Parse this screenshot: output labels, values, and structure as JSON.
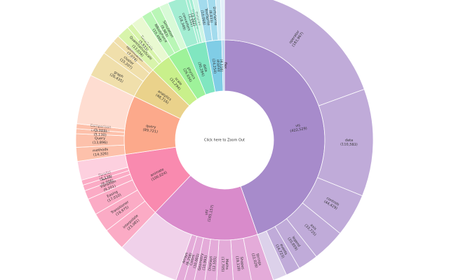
{
  "chart_data": {
    "type": "sunburst",
    "center_label": "Click here to Zoom Out",
    "nodes": [
      {
        "name": "vis",
        "value": 422529,
        "value_label": "(422,529)",
        "color": "#a78bcb",
        "children": [
          {
            "name": "operator",
            "value": 183967,
            "value_label": "(183,967)"
          },
          {
            "name": "data",
            "value": 110583,
            "value_label": "(110,583)"
          },
          {
            "name": "controls",
            "value": 44429,
            "value_label": "(44,429)"
          },
          {
            "name": "axis",
            "value": 33725,
            "value_label": "(33,725)"
          },
          {
            "name": "legend",
            "value": 20859,
            "value_label": "(20,859)"
          },
          {
            "name": "events",
            "value": 14723,
            "value_label": "(14,723)"
          }
        ]
      },
      {
        "name": "util",
        "value": 165157,
        "value_label": "(165,157)",
        "color": "#d98bcb",
        "children": [
          {
            "name": "Strings",
            "value": 22026,
            "value_label": "(22,026)"
          },
          {
            "name": "Shapes",
            "value": 19118,
            "value_label": "(19,118)"
          },
          {
            "name": "Maths",
            "value": 17705,
            "value_label": "(17,705)"
          },
          {
            "name": "Displays",
            "value": 12555,
            "value_label": "(12,555)"
          },
          {
            "name": "Geometry",
            "value": 10993,
            "value_label": "(10,993)"
          },
          {
            "name": "Colors",
            "value": 10001,
            "value_label": "(10,001)"
          },
          {
            "name": "Arrays",
            "value": 8258,
            "value_label": "(8,258)"
          }
        ]
      },
      {
        "name": "animate",
        "value": 100024,
        "value_label": "(100,024)",
        "color": "#f98aaf",
        "children": [
          {
            "name": "interpolate",
            "value": 23081,
            "value_label": "(23,081)"
          },
          {
            "name": "Transitioner",
            "value": 19975,
            "value_label": "(19,975)"
          },
          {
            "name": "Easing",
            "value": 17010,
            "value_label": "(17,010)"
          },
          {
            "name": "Transition",
            "value": 9201,
            "value_label": "(9,201)"
          },
          {
            "name": "Tween",
            "value": 6006,
            "value_label": "(6,006)"
          },
          {
            "name": "Parallel",
            "value": 5176,
            "value_label": "(5,176)"
          }
        ]
      },
      {
        "name": "query",
        "value": 89721,
        "value_label": "(89,721)",
        "color": "#fca98b",
        "children": [
          {
            "name": "methods",
            "value": 14326,
            "value_label": "(14,326)"
          },
          {
            "name": "Query",
            "value": 13896,
            "value_label": "(13,896)"
          },
          {
            "name": "Expression",
            "value": 5130,
            "value_label": "(5,130)"
          },
          {
            "name": "Comparison",
            "value": 5103,
            "value_label": "(5,103)"
          }
        ]
      },
      {
        "name": "analytics",
        "value": 48716,
        "value_label": "(48,716)",
        "color": "#ead28b",
        "children": [
          {
            "name": "graph",
            "value": 26435,
            "value_label": "(26,435)"
          },
          {
            "name": "cluster",
            "value": 15207,
            "value_label": "(15,207)"
          },
          {
            "name": "optimization",
            "value": 7074,
            "value_label": "(7,074)"
          }
        ]
      },
      {
        "name": "scale",
        "value": 31294,
        "value_label": "(31,294)",
        "color": "#c9f08b",
        "children": [
          {
            "name": "QuantitativeScale",
            "value": 13034,
            "value_label": "(13,034)"
          },
          {
            "name": "TimeScale",
            "value": 5833,
            "value_label": "(5,833)"
          }
        ]
      },
      {
        "name": "physics",
        "value": 29934,
        "value_label": "(29,934)",
        "color": "#9ef29a",
        "children": [
          {
            "name": "NBodyForce",
            "value": 10498,
            "value_label": "(10,498)"
          },
          {
            "name": "Simulation",
            "value": 9983,
            "value_label": "(9,983)"
          }
        ]
      },
      {
        "name": "data",
        "value": 30284,
        "value_label": "(30,284)",
        "color": "#80e6c0",
        "children": [
          {
            "name": "converters",
            "value": 18349,
            "value_label": "(18,349)"
          },
          {
            "name": "DataSource",
            "value": 3331,
            "value_label": "(3,331)"
          },
          {
            "name": "DataUtil",
            "value": 3322,
            "value_label": "(3,322)"
          }
        ]
      },
      {
        "name": "display",
        "value": 24254,
        "value_label": "(24,254)",
        "color": "#80cde6",
        "children": [
          {
            "name": "TextSprite",
            "value": 10066,
            "value_label": "(10,066)"
          },
          {
            "name": "DirtySprite",
            "value": 8833,
            "value_label": "(8,833)"
          }
        ]
      },
      {
        "name": "flex",
        "value": 4116,
        "value_label": "(4,116)",
        "color": "#b9d8f0",
        "children": []
      }
    ]
  }
}
